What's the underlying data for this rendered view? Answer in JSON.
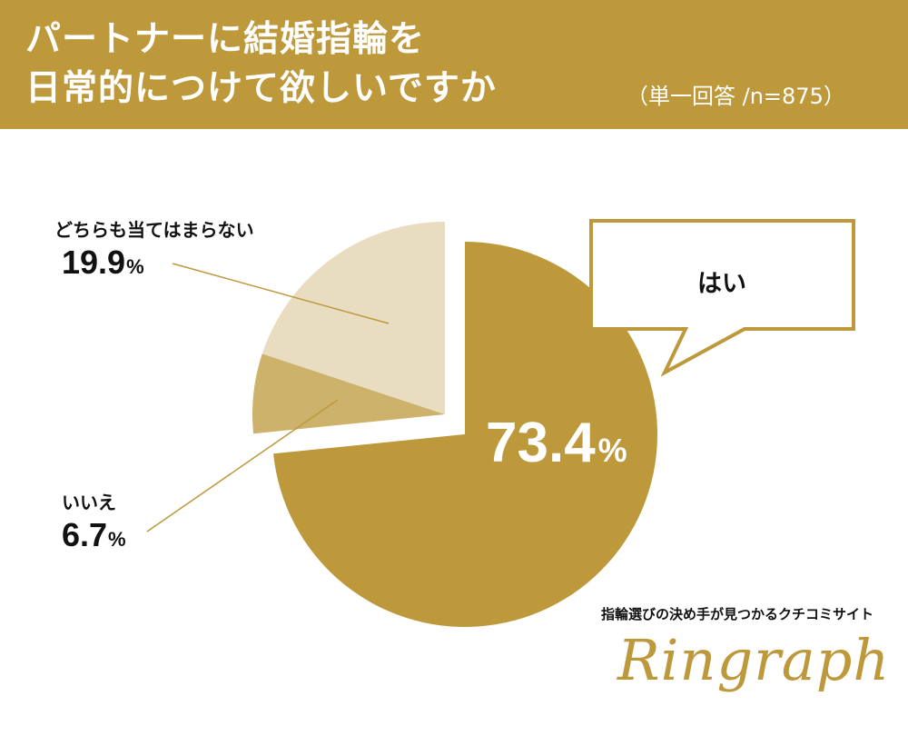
{
  "title": {
    "line1": "パートナーに結婚指輪を",
    "line2": "日常的につけて欲しいですか",
    "note": "（単一回答 /n=875）"
  },
  "colors": {
    "header": "#bd993c",
    "yes": "#bd993c",
    "no": "#ccb26b",
    "neither": "#e9ddc1",
    "leader": "#bd993c",
    "callout_border": "#bd993c"
  },
  "chart_data": {
    "type": "pie",
    "slices": [
      {
        "label": "はい",
        "value": 73.4,
        "value_text": "73.4",
        "unit": "%"
      },
      {
        "label": "いいえ",
        "value": 6.7,
        "value_text": "6.7",
        "unit": "%"
      },
      {
        "label": "どちらも当てはまらない",
        "value": 19.9,
        "value_text": "19.9",
        "unit": "%"
      }
    ]
  },
  "branding": {
    "tagline": "指輪選びの決め手が見つかるクチコミサイト",
    "logo": "Ringraph"
  }
}
